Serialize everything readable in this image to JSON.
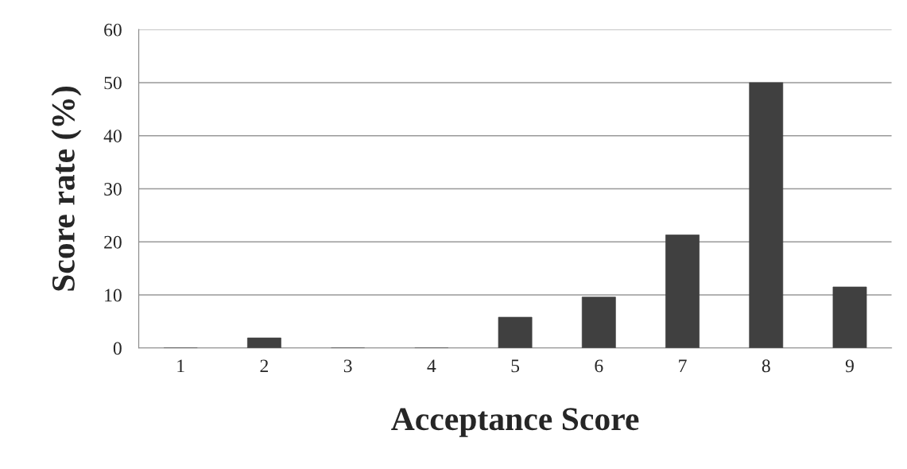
{
  "chart_data": {
    "type": "bar",
    "xlabel": "Acceptance Score",
    "ylabel": "Score rate (%)",
    "categories": [
      "1",
      "2",
      "3",
      "4",
      "5",
      "6",
      "7",
      "8",
      "9"
    ],
    "values": [
      0,
      1.9,
      0,
      0,
      5.8,
      9.6,
      21.3,
      50,
      11.5
    ],
    "color": "#404040",
    "ylim": [
      0,
      60
    ],
    "yticks": [
      0,
      10,
      20,
      30,
      40,
      50,
      60
    ],
    "grid": "y"
  }
}
